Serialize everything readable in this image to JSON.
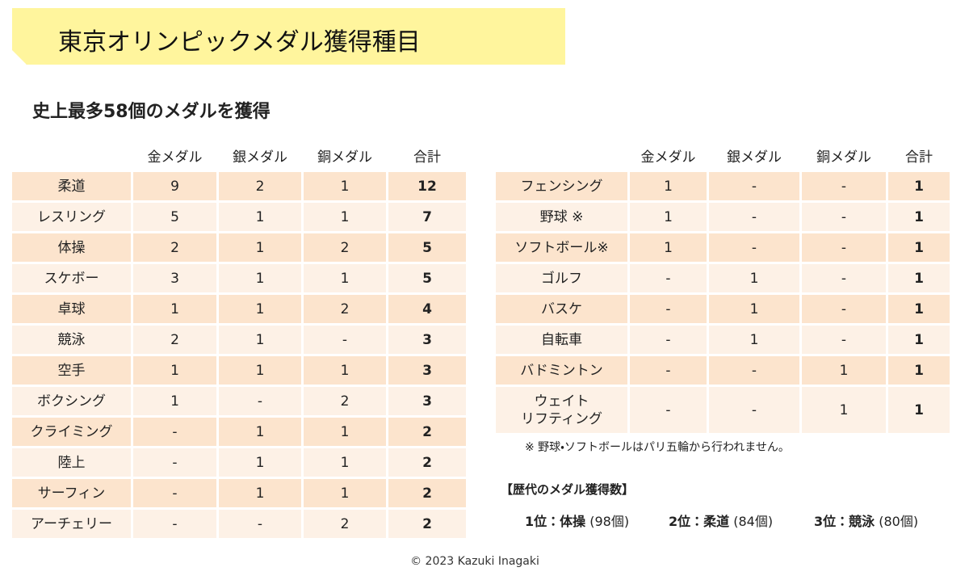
{
  "header": {
    "title": "東京オリンピックメダル獲得種目",
    "subtitle": "史上最多58個のメダルを獲得"
  },
  "tables": [
    {
      "columns": [
        "金メダル",
        "銀メダル",
        "銅メダル",
        "合計"
      ],
      "rows": [
        {
          "label": "柔道",
          "cells": [
            9,
            2,
            1,
            12
          ]
        },
        {
          "label": "レスリング",
          "cells": [
            5,
            1,
            1,
            7
          ]
        },
        {
          "label": "体操",
          "cells": [
            2,
            1,
            2,
            5
          ]
        },
        {
          "label": "スケボー",
          "cells": [
            3,
            1,
            1,
            5
          ]
        },
        {
          "label": "卓球",
          "cells": [
            1,
            1,
            2,
            4
          ]
        },
        {
          "label": "競泳",
          "cells": [
            2,
            1,
            "-",
            3
          ]
        },
        {
          "label": "空手",
          "cells": [
            1,
            1,
            1,
            3
          ]
        },
        {
          "label": "ボクシング",
          "cells": [
            1,
            "-",
            2,
            3
          ]
        },
        {
          "label": "クライミング",
          "cells": [
            "-",
            1,
            1,
            2
          ]
        },
        {
          "label": "陸上",
          "cells": [
            "-",
            1,
            1,
            2
          ]
        },
        {
          "label": "サーフィン",
          "cells": [
            "-",
            1,
            1,
            2
          ]
        },
        {
          "label": "アーチェリー",
          "cells": [
            "-",
            "-",
            2,
            2
          ]
        }
      ]
    },
    {
      "columns": [
        "金メダル",
        "銀メダル",
        "銅メダル",
        "合計"
      ],
      "rows": [
        {
          "label": "フェンシング",
          "cells": [
            1,
            "-",
            "-",
            1
          ]
        },
        {
          "label": "野球 ※",
          "cells": [
            1,
            "-",
            "-",
            1
          ]
        },
        {
          "label": "ソフトボール※",
          "cells": [
            1,
            "-",
            "-",
            1
          ]
        },
        {
          "label": "ゴルフ",
          "cells": [
            "-",
            1,
            "-",
            1
          ]
        },
        {
          "label": "バスケ",
          "cells": [
            "-",
            1,
            "-",
            1
          ]
        },
        {
          "label": "自転車",
          "cells": [
            "-",
            1,
            "-",
            1
          ]
        },
        {
          "label": "バドミントン",
          "cells": [
            "-",
            "-",
            1,
            1
          ]
        },
        {
          "label": [
            "ウェイト",
            "リフティング"
          ],
          "cells": [
            "-",
            "-",
            1,
            1
          ]
        }
      ]
    }
  ],
  "note": "※ 野球・ソフトボールはパリ五輪から行われません。",
  "history": {
    "heading": "【歴代のメダル獲得数】",
    "ranks": [
      {
        "rank": "1位：体操",
        "count": "(98個)"
      },
      {
        "rank": "2位：柔道",
        "count": "(84個)"
      },
      {
        "rank": "3位：競泳",
        "count": "(80個)"
      }
    ]
  },
  "footer": "© 2023 Kazuki Inagaki"
}
